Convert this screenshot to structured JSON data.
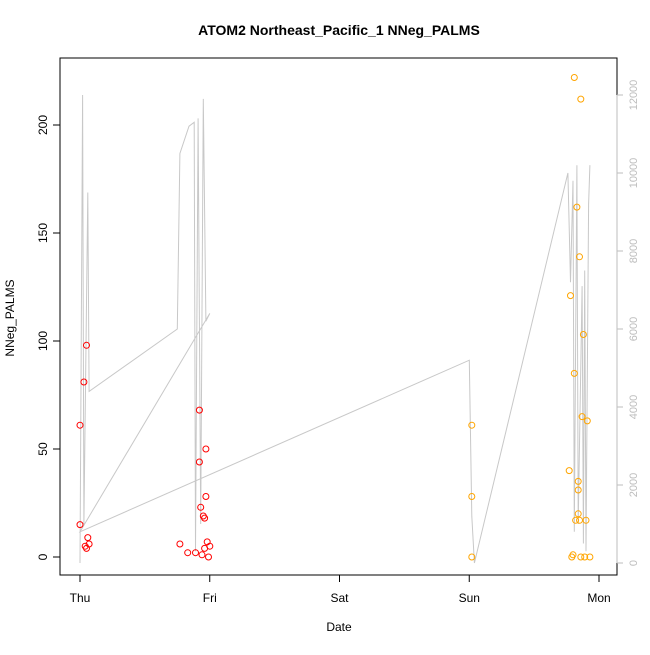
{
  "chart_data": {
    "type": "scatter",
    "title": "ATOM2 Northeast_Pacific_1 NNeg_PALMS",
    "xlabel": "Date",
    "ylabel": "NNeg_PALMS",
    "x_ticks": [
      "Thu",
      "Fri",
      "Sat",
      "Sun",
      "Mon"
    ],
    "x_range_days": [
      0,
      4
    ],
    "y_left": {
      "lim": [
        0,
        222
      ],
      "ticks": [
        0,
        50,
        100,
        150,
        200
      ]
    },
    "y_right": {
      "lim": [
        0,
        12000
      ],
      "ticks": [
        0,
        2000,
        4000,
        6000,
        8000,
        10000,
        12000
      ],
      "color": "#bdbdbd"
    },
    "grid": false,
    "colors": {
      "red": "#ff0000",
      "orange": "#ffa500",
      "line": "#c8c8c8",
      "axis": "#000000"
    },
    "series": [
      {
        "color": "red",
        "points": [
          [
            0.0,
            61
          ],
          [
            0.0,
            15
          ],
          [
            0.03,
            81
          ],
          [
            0.04,
            5
          ],
          [
            0.05,
            98
          ],
          [
            0.05,
            4
          ],
          [
            0.06,
            9
          ],
          [
            0.07,
            6
          ],
          [
            0.77,
            6
          ],
          [
            0.83,
            2
          ],
          [
            0.89,
            2
          ],
          [
            0.92,
            68
          ],
          [
            0.92,
            44
          ],
          [
            0.93,
            23
          ],
          [
            0.94,
            1
          ],
          [
            0.95,
            19
          ],
          [
            0.96,
            4
          ],
          [
            0.96,
            18
          ],
          [
            0.97,
            28
          ],
          [
            0.97,
            50
          ],
          [
            0.98,
            7
          ],
          [
            0.99,
            0
          ],
          [
            1.0,
            5
          ]
        ]
      },
      {
        "color": "orange",
        "points": [
          [
            3.02,
            61
          ],
          [
            3.02,
            28
          ],
          [
            3.02,
            0
          ],
          [
            3.77,
            40
          ],
          [
            3.78,
            121
          ],
          [
            3.79,
            0
          ],
          [
            3.8,
            1
          ],
          [
            3.81,
            85
          ],
          [
            3.82,
            17
          ],
          [
            3.83,
            162
          ],
          [
            3.84,
            20
          ],
          [
            3.84,
            31
          ],
          [
            3.84,
            35
          ],
          [
            3.85,
            139
          ],
          [
            3.85,
            17
          ],
          [
            3.86,
            0
          ],
          [
            3.87,
            65
          ],
          [
            3.88,
            103
          ],
          [
            3.89,
            0
          ],
          [
            3.91,
            63
          ],
          [
            3.93,
            0
          ],
          [
            3.9,
            17
          ],
          [
            3.81,
            222
          ],
          [
            3.86,
            212
          ]
        ]
      }
    ],
    "line_right_axis": [
      [
        0.0,
        0
      ],
      [
        0.02,
        12000
      ],
      [
        0.03,
        1000
      ],
      [
        0.06,
        9500
      ],
      [
        0.07,
        4400
      ],
      [
        0.75,
        6000
      ],
      [
        0.77,
        10500
      ],
      [
        0.84,
        11200
      ],
      [
        0.88,
        11300
      ],
      [
        0.89,
        300
      ],
      [
        0.91,
        11400
      ],
      [
        0.93,
        1000
      ],
      [
        0.95,
        11900
      ],
      [
        0.97,
        6200
      ],
      [
        1.0,
        6400
      ],
      [
        0.0,
        800
      ],
      [
        3.0,
        5200
      ],
      [
        3.02,
        1200
      ],
      [
        3.04,
        0
      ],
      [
        3.76,
        10000
      ],
      [
        3.78,
        7200
      ],
      [
        3.8,
        9800
      ],
      [
        3.81,
        800
      ],
      [
        3.83,
        10200
      ],
      [
        3.84,
        1000
      ],
      [
        3.87,
        7100
      ],
      [
        3.88,
        500
      ],
      [
        3.89,
        7500
      ],
      [
        3.9,
        300
      ],
      [
        3.92,
        9200
      ],
      [
        3.93,
        10200
      ]
    ]
  }
}
